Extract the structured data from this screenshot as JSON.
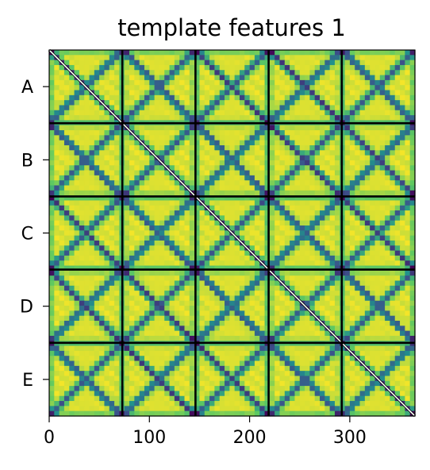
{
  "chart_data": {
    "type": "heatmap",
    "title": "template features 1",
    "xlabel": "",
    "ylabel": "",
    "x_ticks": [
      0,
      100,
      200,
      300
    ],
    "x_range": [
      0,
      365
    ],
    "y_range": [
      0,
      365
    ],
    "y_tick_labels": [
      "A",
      "B",
      "C",
      "D",
      "E"
    ],
    "block_boundaries": [
      73,
      146,
      219,
      292
    ],
    "grid": false,
    "colormap": "viridis",
    "colormap_stops": [
      "#440154",
      "#3b528b",
      "#21918c",
      "#5ec962",
      "#fde725"
    ],
    "block_line_color": "#000000",
    "diagonal_color": "#ffffff",
    "pattern": "5x5 blocks of 73 samples each; values high near block centers and low along diagonal and anti-diagonal stripes within each block; main diagonal masked"
  }
}
